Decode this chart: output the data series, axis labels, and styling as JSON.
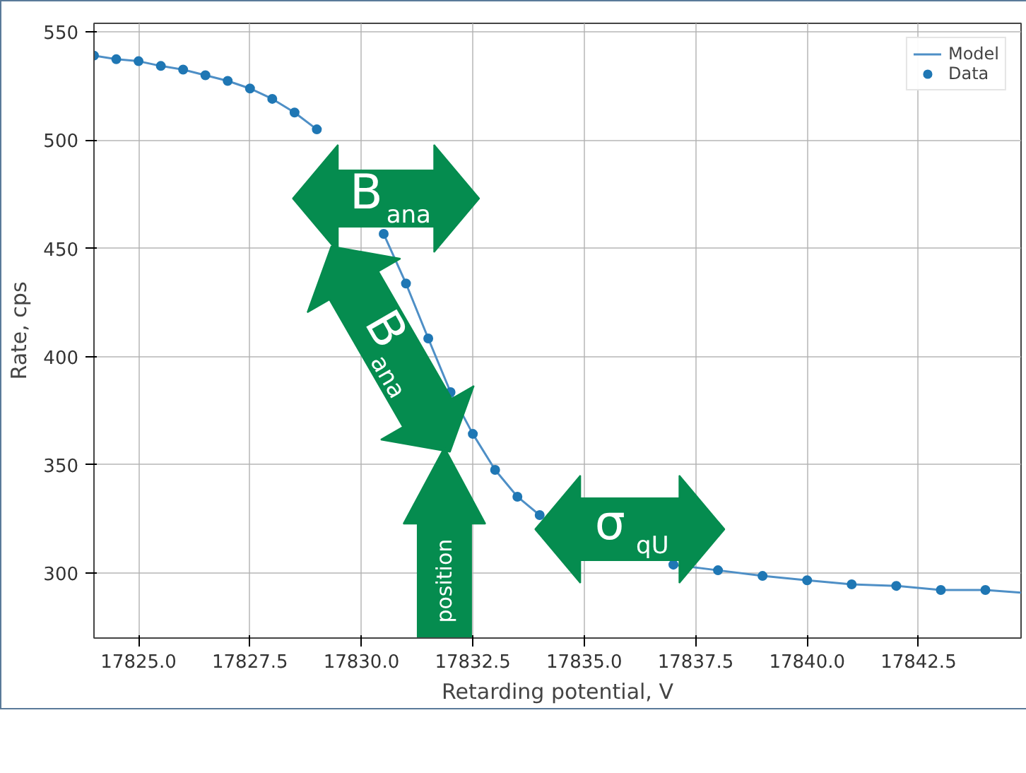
{
  "chart_data": {
    "type": "line",
    "xlabel": "Retarding potential, V",
    "ylabel": "Rate, cps",
    "xlim": [
      17824.0,
      17844.8
    ],
    "ylim": [
      270,
      554
    ],
    "xticks": [
      {
        "value": 17825.0,
        "label": "17825.0"
      },
      17827.5,
      {
        "value": 17830.0,
        "label": "17830.0"
      },
      17832.5,
      {
        "value": 17835.0,
        "label": "17835.0"
      },
      17837.5,
      {
        "value": 17840.0,
        "label": "17840.0"
      },
      17842.5
    ],
    "yticks": [
      300,
      350,
      400,
      450,
      500,
      550
    ],
    "grid": true,
    "legend": "top right",
    "series": [
      {
        "name": "Model",
        "color": "#4e8fc6",
        "x": [
          17824.0,
          17824.5,
          17825,
          17825.5,
          17826,
          17826.5,
          17827,
          17827.5,
          17828,
          17828.5,
          17829,
          17829.5,
          17830,
          17830.5,
          17831,
          17831.5,
          17832,
          17832.5,
          17833,
          17833.5,
          17834,
          17835,
          17836,
          17837,
          17838,
          17839,
          17840,
          17841,
          17842,
          17843,
          17844,
          17844.8
        ],
        "values": [
          539.1,
          537.4,
          536.5,
          534.3,
          532.6,
          530,
          527.4,
          523.9,
          519.1,
          512.8,
          505,
          null,
          null,
          456.7,
          433.8,
          408.4,
          383.6,
          364.3,
          347.7,
          335.3,
          326.8,
          null,
          null,
          303.9,
          301.3,
          298.7,
          296.7,
          294.8,
          294.1,
          292.2,
          292.2,
          291
        ]
      },
      {
        "name": "Data",
        "type": "scatter",
        "marker": "circle",
        "color": "#1f77b4",
        "x": [
          17824.0,
          17824.5,
          17825,
          17825.5,
          17826,
          17826.5,
          17827,
          17827.5,
          17828,
          17828.5,
          17829,
          17830.5,
          17831,
          17831.5,
          17832,
          17832.5,
          17833,
          17833.5,
          17834,
          17837,
          17838,
          17839,
          17840,
          17841,
          17842,
          17843,
          17844
        ],
        "values": [
          539.1,
          537.4,
          536.5,
          534.3,
          532.6,
          530,
          527.4,
          523.9,
          519.1,
          512.8,
          505,
          456.7,
          433.8,
          408.4,
          383.6,
          364.3,
          347.7,
          335.3,
          326.8,
          303.9,
          301.3,
          298.7,
          296.7,
          294.8,
          294.1,
          292.2,
          292.2
        ]
      }
    ],
    "annotations": [
      "B$_{ana}$",
      "B$_{ana}$",
      "σ$_{qU}$",
      "position"
    ]
  }
}
